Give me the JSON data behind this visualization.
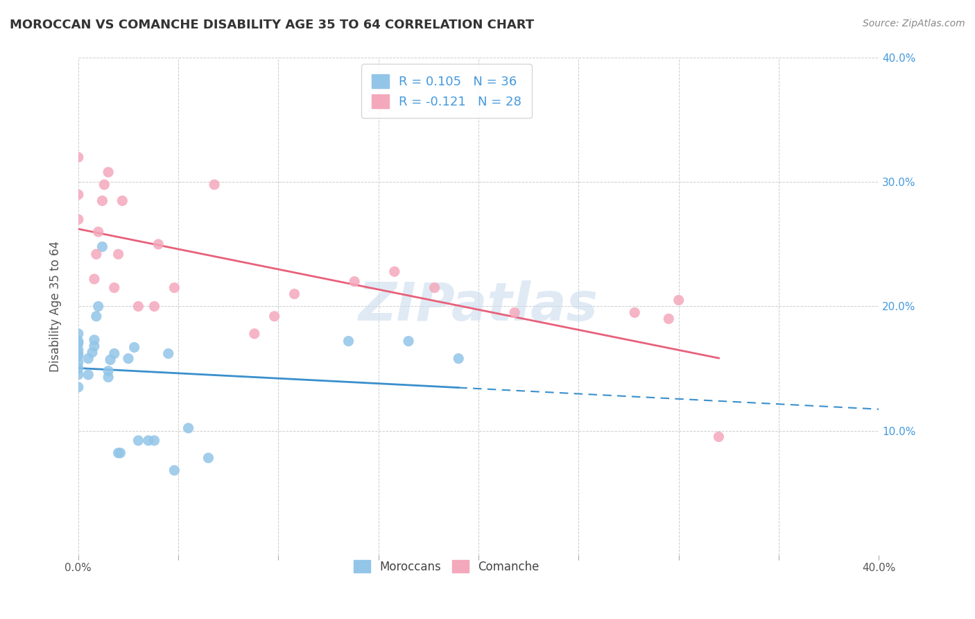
{
  "title": "MOROCCAN VS COMANCHE DISABILITY AGE 35 TO 64 CORRELATION CHART",
  "source": "Source: ZipAtlas.com",
  "ylabel": "Disability Age 35 to 64",
  "xlim": [
    0.0,
    0.4
  ],
  "ylim": [
    0.0,
    0.4
  ],
  "xtick_vals": [
    0.0,
    0.05,
    0.1,
    0.15,
    0.2,
    0.25,
    0.3,
    0.35,
    0.4
  ],
  "ytick_vals": [
    0.0,
    0.1,
    0.2,
    0.3,
    0.4
  ],
  "ytick_labels": [
    "",
    "10.0%",
    "20.0%",
    "30.0%",
    "40.0%"
  ],
  "moroccan_color": "#92C5E8",
  "comanche_color": "#F4A8BC",
  "moroccan_line_color": "#3A8FCC",
  "comanche_line_color": "#E8607A",
  "watermark": "ZIPatlas",
  "legend_R_moroccan": "R = 0.105",
  "legend_N_moroccan": "N = 36",
  "legend_R_comanche": "R = -0.121",
  "legend_N_comanche": "N = 28",
  "legend_text_color": "#4499DD",
  "moroccan_x": [
    0.0,
    0.0,
    0.0,
    0.0,
    0.0,
    0.0,
    0.0,
    0.0,
    0.0,
    0.0,
    0.005,
    0.005,
    0.007,
    0.008,
    0.008,
    0.009,
    0.01,
    0.012,
    0.015,
    0.015,
    0.016,
    0.018,
    0.02,
    0.021,
    0.025,
    0.028,
    0.03,
    0.035,
    0.038,
    0.045,
    0.048,
    0.055,
    0.065,
    0.135,
    0.165,
    0.19
  ],
  "moroccan_y": [
    0.135,
    0.145,
    0.15,
    0.155,
    0.16,
    0.162,
    0.165,
    0.17,
    0.172,
    0.178,
    0.145,
    0.158,
    0.163,
    0.168,
    0.173,
    0.192,
    0.2,
    0.248,
    0.143,
    0.148,
    0.157,
    0.162,
    0.082,
    0.082,
    0.158,
    0.167,
    0.092,
    0.092,
    0.092,
    0.162,
    0.068,
    0.102,
    0.078,
    0.172,
    0.172,
    0.158
  ],
  "comanche_x": [
    0.0,
    0.0,
    0.0,
    0.008,
    0.009,
    0.01,
    0.012,
    0.013,
    0.015,
    0.018,
    0.02,
    0.022,
    0.03,
    0.038,
    0.04,
    0.048,
    0.068,
    0.088,
    0.098,
    0.108,
    0.138,
    0.158,
    0.178,
    0.218,
    0.278,
    0.295,
    0.3,
    0.32
  ],
  "comanche_y": [
    0.27,
    0.29,
    0.32,
    0.222,
    0.242,
    0.26,
    0.285,
    0.298,
    0.308,
    0.215,
    0.242,
    0.285,
    0.2,
    0.2,
    0.25,
    0.215,
    0.298,
    0.178,
    0.192,
    0.21,
    0.22,
    0.228,
    0.215,
    0.195,
    0.195,
    0.19,
    0.205,
    0.095
  ]
}
